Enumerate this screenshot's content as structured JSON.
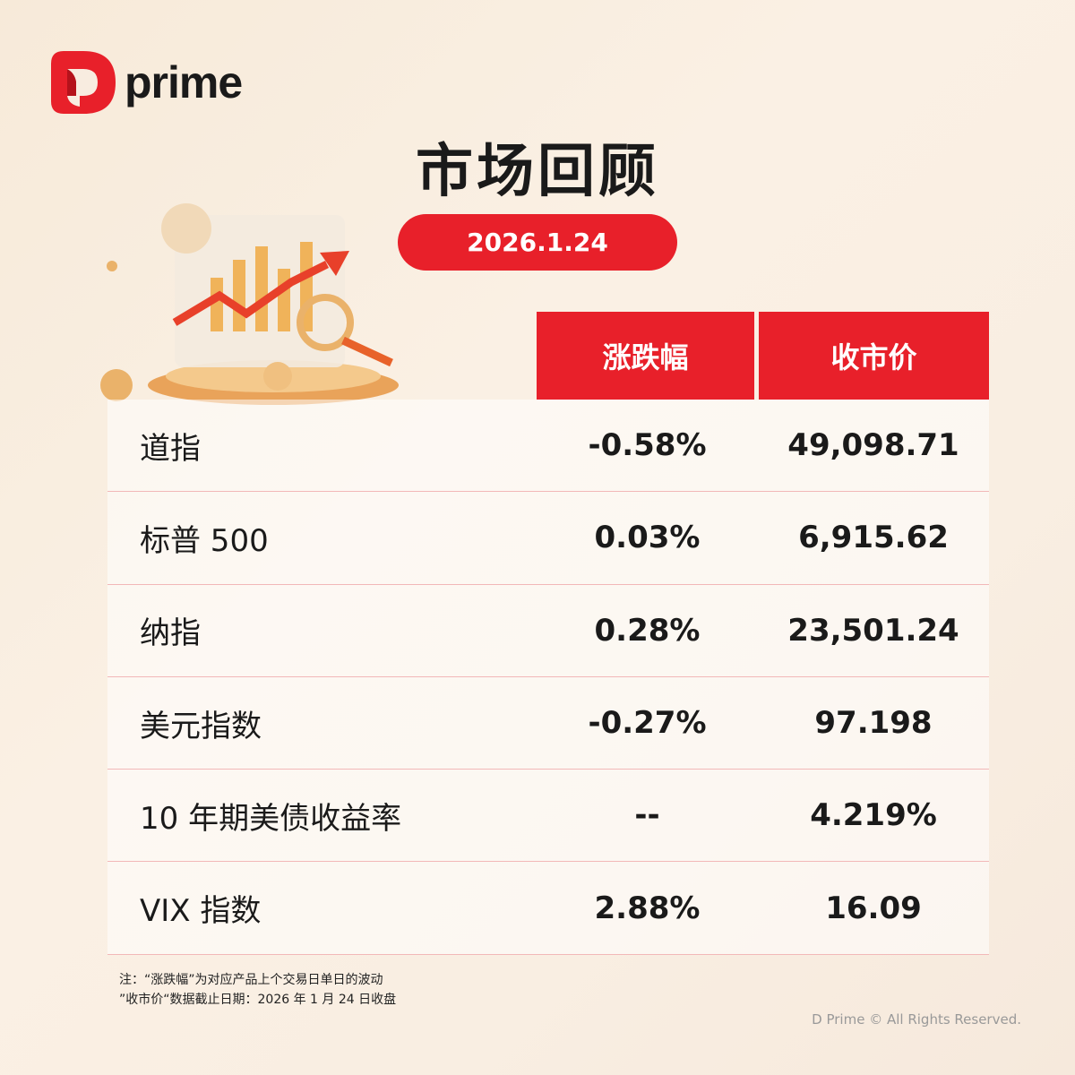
{
  "brand": {
    "name": "prime",
    "color": "#e8202a"
  },
  "title": "市场回顾",
  "date": "2026.1.24",
  "table": {
    "headers": [
      "涨跌幅",
      "收市价"
    ],
    "rows": [
      {
        "name": "道指",
        "change": "-0.58%",
        "close": "49,098.71"
      },
      {
        "name": "标普 500",
        "change": "0.03%",
        "close": "6,915.62"
      },
      {
        "name": "纳指",
        "change": "0.28%",
        "close": "23,501.24"
      },
      {
        "name": "美元指数",
        "change": "-0.27%",
        "close": "97.198"
      },
      {
        "name": "10 年期美债收益率",
        "change": "--",
        "close": "4.219%"
      },
      {
        "name": "VIX 指数",
        "change": "2.88%",
        "close": "16.09"
      }
    ]
  },
  "notes": [
    "注：“涨跌幅”为对应产品上个交易日单日的波动",
    "”收市价“数据截止日期：2026 年 1 月 24 日收盘"
  ],
  "copyright": "D Prime © All Rights Reserved."
}
